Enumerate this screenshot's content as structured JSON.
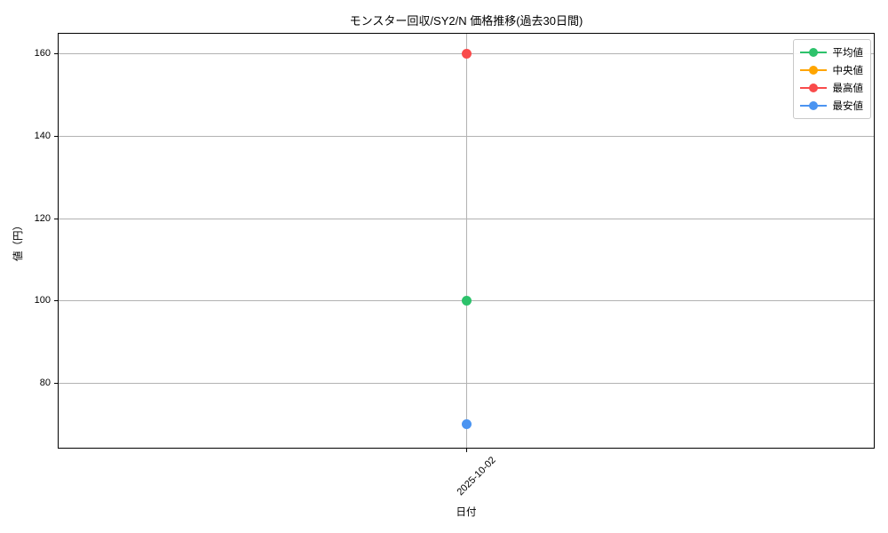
{
  "chart_data": {
    "type": "line",
    "title": "モンスター回収/SY2/N 価格推移(過去30日間)",
    "xlabel": "日付",
    "ylabel": "値（円）",
    "x": [
      "2025-10-02"
    ],
    "series": [
      {
        "name": "平均値",
        "color": "#2dc26b",
        "values": [
          100
        ]
      },
      {
        "name": "中央値",
        "color": "#ffa500",
        "values": [
          null
        ],
        "note": "legend entry visible; marker not visible (overlapped by another series)"
      },
      {
        "name": "最高値",
        "color": "#f94b4b",
        "values": [
          160
        ]
      },
      {
        "name": "最安値",
        "color": "#4b94f1",
        "values": [
          70
        ]
      }
    ],
    "yticks": [
      80,
      100,
      120,
      140,
      160
    ],
    "ylim": [
      64,
      165
    ],
    "grid": true,
    "legend_position": "upper right",
    "grid_color": "#b2b2b2",
    "axis_color": "#000000",
    "background": "#ffffff"
  }
}
